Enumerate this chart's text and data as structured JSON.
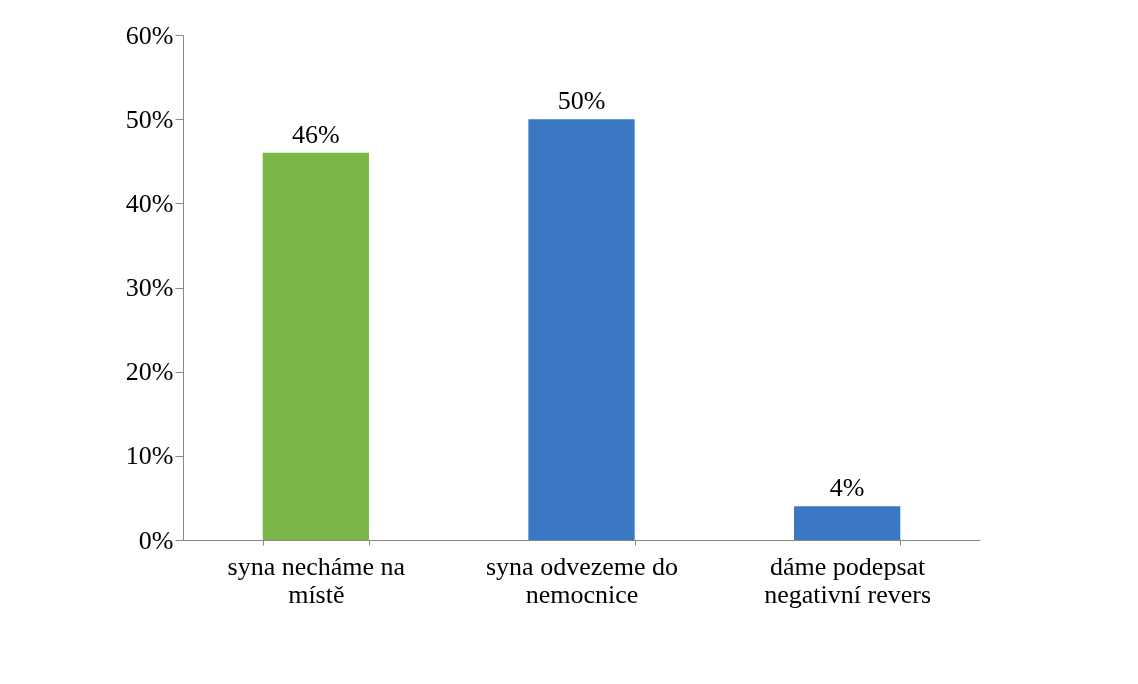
{
  "chart_data": {
    "type": "bar",
    "categories": [
      "syna necháme na místě",
      "syna odvezeme do nemocnice",
      "dáme podepsat negativní revers"
    ],
    "values": [
      46,
      50,
      4
    ],
    "colors": [
      "#7ab648",
      "#3a78c3",
      "#3a78c3"
    ],
    "value_labels": [
      "46%",
      "50%",
      "4%"
    ],
    "ylim": [
      0,
      60
    ],
    "yticks": [
      {
        "value": 0,
        "label": "0%"
      },
      {
        "value": 10,
        "label": "10%"
      },
      {
        "value": 20,
        "label": "20%"
      },
      {
        "value": 30,
        "label": "30%"
      },
      {
        "value": 40,
        "label": "40%"
      },
      {
        "value": 50,
        "label": "50%"
      },
      {
        "value": 60,
        "label": "60%"
      }
    ],
    "grid": false
  }
}
